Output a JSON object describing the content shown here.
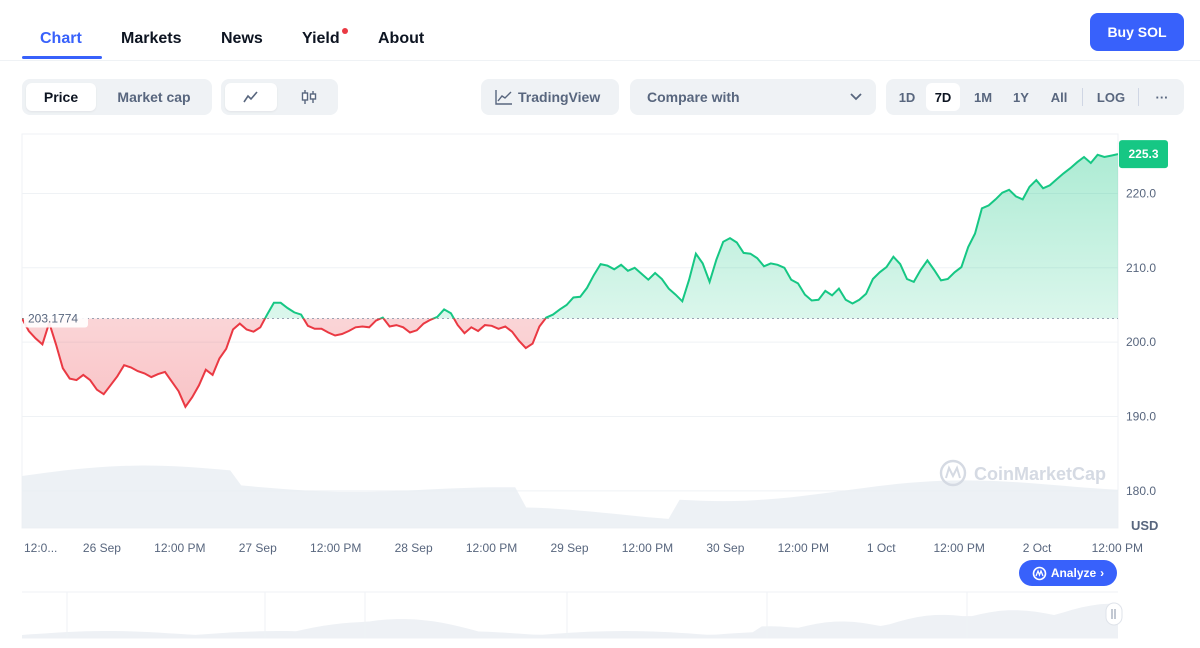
{
  "nav": {
    "tabs": [
      {
        "label": "Chart",
        "active": true
      },
      {
        "label": "Markets"
      },
      {
        "label": "News"
      },
      {
        "label": "Yield"
      },
      {
        "label": "About"
      }
    ],
    "buy_label": "Buy SOL"
  },
  "toolbar": {
    "metric": [
      "Price",
      "Market cap"
    ],
    "tradingview_label": "TradingView",
    "compare_label": "Compare with",
    "ranges": [
      "1D",
      "7D",
      "1M",
      "1Y",
      "All"
    ],
    "log_label": "LOG",
    "more_label": "···"
  },
  "analyze_label": "Analyze",
  "watermark": "CoinMarketCap",
  "colors": {
    "up": "#16c784",
    "down": "#ea3943",
    "accent": "#3861fb"
  },
  "chart_data": {
    "type": "line",
    "x_labels": [
      "12:0...",
      "26 Sep",
      "12:00 PM",
      "27 Sep",
      "12:00 PM",
      "28 Sep",
      "12:00 PM",
      "29 Sep",
      "12:00 PM",
      "30 Sep",
      "12:00 PM",
      "1 Oct",
      "12:00 PM",
      "2 Oct",
      "12:00 PM"
    ],
    "y_ticks": [
      "180.0",
      "190.0",
      "200.0",
      "210.0",
      "220.0"
    ],
    "ylim": [
      175,
      228
    ],
    "unit": "USD",
    "baseline": 203.1774,
    "baseline_label": "203.1774",
    "current_label": "225.3",
    "series": [
      {
        "values": [
          203.2,
          201.5,
          200.5,
          199.7,
          202.6,
          199.7,
          196.5,
          195.1,
          194.9,
          195.6,
          194.9,
          193.6,
          193.0,
          194.2,
          195.4,
          196.9,
          196.6,
          196.1,
          195.8,
          195.3,
          195.7,
          196.0,
          194.7,
          193.4,
          191.3,
          192.6,
          194.2,
          196.3,
          195.6,
          197.8,
          199.1,
          201.7,
          202.5,
          201.7,
          201.4,
          202.0,
          203.7,
          205.3,
          205.3,
          204.6,
          204.0,
          203.7,
          202.2,
          201.8,
          201.8,
          201.3,
          200.9,
          201.1,
          201.5,
          202.0,
          202.1,
          202.0,
          202.9,
          203.3,
          202.1,
          202.3,
          202.0,
          201.3,
          201.6,
          202.5,
          203.0,
          203.4,
          204.4,
          203.9,
          202.3,
          201.2,
          202.0,
          201.5,
          202.3,
          202.2,
          201.8,
          202.1,
          201.4,
          200.2,
          199.2,
          199.8,
          202.1,
          203.3,
          203.7,
          204.4,
          205.0,
          206.0,
          206.1,
          207.3,
          209.0,
          210.5,
          210.3,
          209.8,
          210.4,
          209.6,
          210.0,
          209.2,
          208.4,
          209.3,
          208.5,
          207.2,
          206.4,
          205.5,
          208.4,
          211.9,
          210.6,
          208.1,
          211.1,
          213.5,
          214.0,
          213.4,
          212.0,
          211.9,
          211.3,
          210.2,
          210.6,
          210.4,
          210.0,
          208.4,
          207.9,
          206.4,
          205.6,
          205.7,
          206.9,
          206.3,
          207.2,
          205.7,
          205.2,
          205.7,
          206.5,
          208.5,
          209.4,
          210.1,
          211.5,
          210.5,
          208.5,
          208.1,
          209.7,
          211.0,
          209.7,
          208.3,
          208.5,
          209.4,
          210.1,
          212.8,
          214.6,
          218.0,
          218.4,
          219.2,
          220.1,
          220.5,
          219.6,
          219.2,
          220.9,
          221.8,
          220.7,
          221.1,
          221.9,
          222.7,
          223.4,
          224.2,
          224.9,
          224.1,
          225.2,
          224.9,
          225.1,
          225.3
        ]
      }
    ]
  }
}
